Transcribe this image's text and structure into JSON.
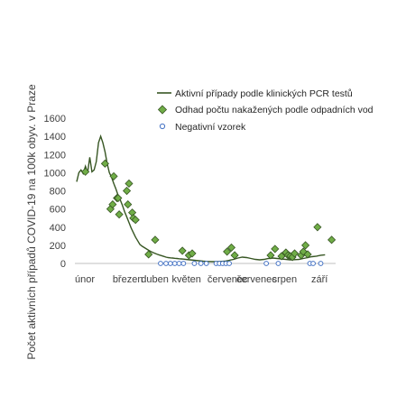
{
  "chart_data": {
    "type": "line",
    "ylabel": "Počet aktivních případů COVID-19 na 100k obyv. v Praze",
    "xlabel": "",
    "ylim": [
      0,
      1600
    ],
    "yticks": [
      0,
      200,
      400,
      600,
      800,
      1000,
      1200,
      1400,
      1600
    ],
    "xlim": [
      0,
      236
    ],
    "months": [
      {
        "label": "únor",
        "x": 0
      },
      {
        "label": "březen",
        "x": 28
      },
      {
        "label": "duben",
        "x": 59
      },
      {
        "label": "květen",
        "x": 89
      },
      {
        "label": "červenec",
        "x": 120
      },
      {
        "label": "červenec",
        "x": 150
      },
      {
        "label": "srpen",
        "x": 181
      },
      {
        "label": "září",
        "x": 212
      }
    ],
    "grid": false,
    "legend_position": "top-right",
    "series": [
      {
        "name": "Aktivní případy podle klinických PCR testů",
        "kind": "line",
        "color": "#375623",
        "points": [
          [
            0,
            900
          ],
          [
            2,
            1000
          ],
          [
            4,
            1030
          ],
          [
            6,
            990
          ],
          [
            8,
            1070
          ],
          [
            10,
            1000
          ],
          [
            12,
            1170
          ],
          [
            14,
            1010
          ],
          [
            16,
            1030
          ],
          [
            18,
            1120
          ],
          [
            20,
            1330
          ],
          [
            22,
            1400
          ],
          [
            24,
            1330
          ],
          [
            26,
            1230
          ],
          [
            28,
            1100
          ],
          [
            30,
            1000
          ],
          [
            32,
            950
          ],
          [
            34,
            880
          ],
          [
            36,
            820
          ],
          [
            38,
            750
          ],
          [
            40,
            700
          ],
          [
            42,
            640
          ],
          [
            44,
            570
          ],
          [
            46,
            510
          ],
          [
            48,
            450
          ],
          [
            50,
            390
          ],
          [
            52,
            340
          ],
          [
            54,
            290
          ],
          [
            56,
            250
          ],
          [
            58,
            210
          ],
          [
            60,
            190
          ],
          [
            62,
            175
          ],
          [
            64,
            160
          ],
          [
            66,
            145
          ],
          [
            68,
            132
          ],
          [
            70,
            120
          ],
          [
            72,
            110
          ],
          [
            74,
            100
          ],
          [
            76,
            92
          ],
          [
            78,
            85
          ],
          [
            80,
            78
          ],
          [
            82,
            70
          ],
          [
            84,
            65
          ],
          [
            86,
            62
          ],
          [
            88,
            60
          ],
          [
            90,
            57
          ],
          [
            92,
            55
          ],
          [
            94,
            52
          ],
          [
            96,
            50
          ],
          [
            98,
            48
          ],
          [
            100,
            45
          ],
          [
            104,
            40
          ],
          [
            108,
            35
          ],
          [
            112,
            30
          ],
          [
            116,
            25
          ],
          [
            120,
            22
          ],
          [
            124,
            20
          ],
          [
            128,
            20
          ],
          [
            132,
            22
          ],
          [
            136,
            25
          ],
          [
            140,
            35
          ],
          [
            144,
            45
          ],
          [
            148,
            60
          ],
          [
            152,
            70
          ],
          [
            156,
            65
          ],
          [
            160,
            55
          ],
          [
            164,
            45
          ],
          [
            168,
            40
          ],
          [
            172,
            45
          ],
          [
            176,
            55
          ],
          [
            180,
            60
          ],
          [
            184,
            55
          ],
          [
            188,
            50
          ],
          [
            192,
            45
          ],
          [
            196,
            40
          ],
          [
            200,
            42
          ],
          [
            204,
            45
          ],
          [
            208,
            55
          ],
          [
            212,
            65
          ],
          [
            216,
            75
          ],
          [
            220,
            80
          ],
          [
            224,
            90
          ],
          [
            228,
            95
          ]
        ]
      },
      {
        "name": "Odhad počtu nakažených podle odpadních vod",
        "kind": "diamond",
        "color": "#70AD47",
        "points": [
          [
            8,
            1010
          ],
          [
            26,
            1100
          ],
          [
            31,
            600
          ],
          [
            33,
            650
          ],
          [
            34,
            960
          ],
          [
            37,
            720
          ],
          [
            38,
            720
          ],
          [
            39,
            540
          ],
          [
            46,
            800
          ],
          [
            47,
            650
          ],
          [
            48,
            880
          ],
          [
            51,
            560
          ],
          [
            52,
            500
          ],
          [
            54,
            480
          ],
          [
            66,
            100
          ],
          [
            72,
            260
          ],
          [
            97,
            140
          ],
          [
            103,
            90
          ],
          [
            106,
            110
          ],
          [
            138,
            130
          ],
          [
            142,
            175
          ],
          [
            145,
            90
          ],
          [
            178,
            90
          ],
          [
            182,
            160
          ],
          [
            188,
            80
          ],
          [
            192,
            120
          ],
          [
            194,
            90
          ],
          [
            196,
            80
          ],
          [
            198,
            70
          ],
          [
            200,
            110
          ],
          [
            206,
            90
          ],
          [
            208,
            130
          ],
          [
            210,
            200
          ],
          [
            212,
            100
          ],
          [
            221,
            400
          ],
          [
            234,
            260
          ]
        ]
      },
      {
        "name": "Negativní vzorek",
        "kind": "circle",
        "color": "#4472C4",
        "points": [
          [
            77,
            0
          ],
          [
            82,
            0
          ],
          [
            86,
            0
          ],
          [
            90,
            0
          ],
          [
            94,
            0
          ],
          [
            98,
            0
          ],
          [
            108,
            0
          ],
          [
            114,
            0
          ],
          [
            119,
            0
          ],
          [
            128,
            0
          ],
          [
            131,
            0
          ],
          [
            134,
            0
          ],
          [
            137,
            0
          ],
          [
            140,
            0
          ],
          [
            174,
            0
          ],
          [
            185,
            0
          ],
          [
            214,
            0
          ],
          [
            217,
            0
          ],
          [
            224,
            0
          ]
        ]
      }
    ]
  }
}
